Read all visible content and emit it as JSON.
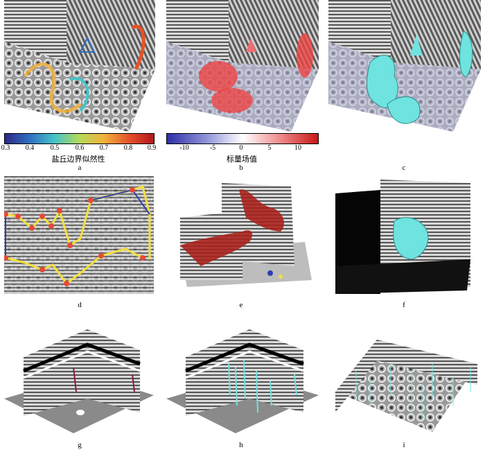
{
  "panels": [
    {
      "label": "a"
    },
    {
      "label": "b"
    },
    {
      "label": "c"
    },
    {
      "label": "d"
    },
    {
      "label": "e"
    },
    {
      "label": "f"
    },
    {
      "label": "g"
    },
    {
      "label": "h"
    },
    {
      "label": "i"
    }
  ],
  "colorbars": [
    {
      "title": "盐丘边界似然性",
      "ticks": [
        "0.3",
        "0.4",
        "0.5",
        "0.6",
        "0.7",
        "0.8",
        "0.9"
      ],
      "colors": [
        "#2c2a86",
        "#2f6fc1",
        "#45c3c9",
        "#b4d95a",
        "#f2b13c",
        "#e4532a",
        "#b4151c"
      ]
    },
    {
      "title": "标量场值",
      "ticks": [
        "-10",
        "-5",
        "0",
        "5",
        "10"
      ],
      "colors": [
        "#2c2fa5",
        "#8c8fd6",
        "#ffffff",
        "#f08a8a",
        "#c81818"
      ]
    }
  ],
  "colors": {
    "seismic_light": "#d8d8d8",
    "seismic_dark": "#3a3a3a",
    "salt_cyan": "#6fe3e0",
    "red": "#e23a3a",
    "yellow": "#f3e03a",
    "blue": "#2d3fb0"
  }
}
